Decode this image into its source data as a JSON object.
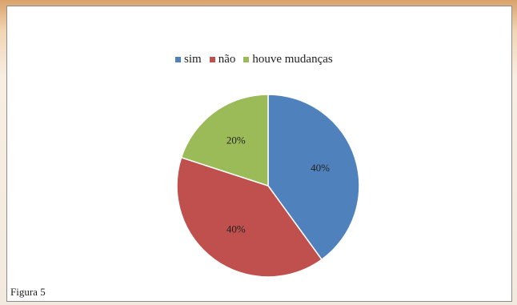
{
  "figure": {
    "caption": "Figura 5"
  },
  "chart_data": {
    "type": "pie",
    "categories": [
      "sim",
      "não",
      "houve mudanças"
    ],
    "values": [
      40,
      40,
      20
    ],
    "labels": [
      "40%",
      "40%",
      "20%"
    ],
    "legend_position": "top",
    "colors": [
      "#4f81bd",
      "#c0504d",
      "#9bbb59"
    ],
    "title": ""
  }
}
